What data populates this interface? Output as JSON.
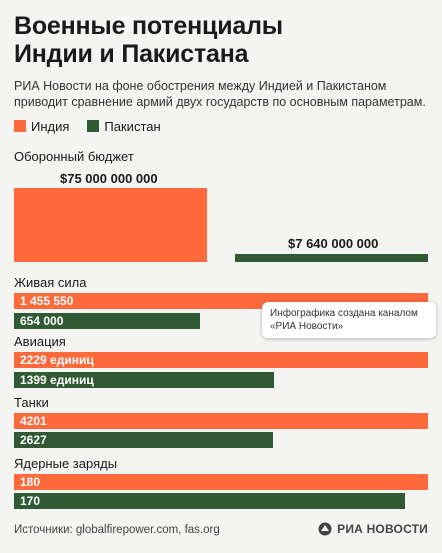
{
  "header": {
    "title_line1": "Военные потенциалы",
    "title_line2": "Индии и Пакистана",
    "subtitle": "РИА Новости на фоне обострения между Индией и Пакистаном приводит сравнение армий двух государств по основным параметрам."
  },
  "colors": {
    "india": "#ff6a3d",
    "pakistan": "#2f5a34"
  },
  "legend": [
    {
      "name": "Индия",
      "color": "#ff6a3d"
    },
    {
      "name": "Пакистан",
      "color": "#2f5a34"
    }
  ],
  "chart_data": {
    "type": "bar",
    "series_names": [
      "Индия",
      "Пакистан"
    ],
    "budget": {
      "label": "Оборонный бюджет",
      "india": 75000000000,
      "pakistan": 7640000000,
      "india_text": "$75 000 000 000",
      "pakistan_text": "$7 640 000 000"
    },
    "groups": [
      {
        "label": "Живая сила",
        "india": 1455550,
        "pakistan": 654000,
        "india_text": "1 455 550",
        "pakistan_text": "654 000"
      },
      {
        "label": "Авиация",
        "india": 2229,
        "pakistan": 1399,
        "india_text": "2229 единиц",
        "pakistan_text": "1399 единиц"
      },
      {
        "label": "Танки",
        "india": 4201,
        "pakistan": 2627,
        "india_text": "4201",
        "pakistan_text": "2627"
      },
      {
        "label": "Ядерные заряды",
        "india": 180,
        "pakistan": 170,
        "india_text": "180",
        "pakistan_text": "170"
      }
    ]
  },
  "tooltip": {
    "text": "Инфографика создана каналом «РИА Новости»"
  },
  "footer": {
    "sources": "Источники: globalfirepower.com, fas.org"
  },
  "logo": {
    "text": "РИА НОВОСТИ",
    "icon": "ria-logo-icon"
  }
}
